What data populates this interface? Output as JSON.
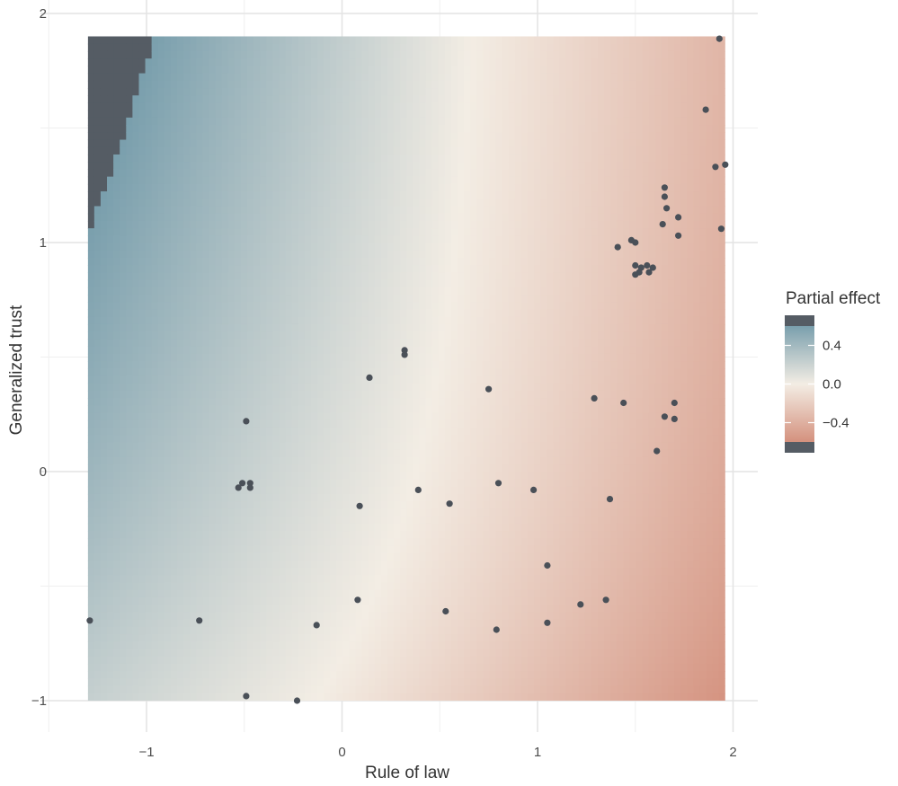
{
  "chart_data": {
    "type": "heatmap",
    "title": "",
    "xlabel": "Rule of law",
    "ylabel": "Generalized trust",
    "xlim": [
      -1.3,
      1.96
    ],
    "ylim": [
      -1.0,
      1.9
    ],
    "x_ticks": [
      -1,
      0,
      1,
      2
    ],
    "y_ticks": [
      -1,
      0,
      1,
      2
    ],
    "x_tick_labels": [
      "−1",
      "0",
      "1",
      "2"
    ],
    "y_tick_labels": [
      "−1",
      "0",
      "1",
      "2"
    ],
    "grid": true,
    "legend": {
      "title": "Partial effect",
      "position": "right",
      "ticks": [
        0.4,
        0.0,
        -0.4
      ],
      "tick_labels": [
        "0.4",
        "0.0",
        "−0.4"
      ],
      "range": [
        -0.6,
        0.6
      ]
    },
    "colors": {
      "high": "#7a9fad",
      "mid": "#f3ede4",
      "low": "#d4917e",
      "out_of_range": "#555c64",
      "points": "#4a5058"
    },
    "surface_description": "Partial effect is positive (blue) at low rule of law and high trust, near zero along a curved band, and negative (red) at high rule of law.",
    "points": [
      {
        "x": -1.29,
        "y": -0.65
      },
      {
        "x": -0.73,
        "y": -0.65
      },
      {
        "x": -0.49,
        "y": -0.98
      },
      {
        "x": -0.23,
        "y": -1.0
      },
      {
        "x": -0.49,
        "y": 0.22
      },
      {
        "x": -0.53,
        "y": -0.07
      },
      {
        "x": -0.51,
        "y": -0.05
      },
      {
        "x": -0.47,
        "y": -0.05
      },
      {
        "x": -0.47,
        "y": -0.07
      },
      {
        "x": -0.13,
        "y": -0.67
      },
      {
        "x": 0.08,
        "y": -0.56
      },
      {
        "x": 0.09,
        "y": -0.15
      },
      {
        "x": 0.14,
        "y": 0.41
      },
      {
        "x": 0.32,
        "y": 0.53
      },
      {
        "x": 0.32,
        "y": 0.51
      },
      {
        "x": 0.39,
        "y": -0.08
      },
      {
        "x": 0.53,
        "y": -0.61
      },
      {
        "x": 0.55,
        "y": -0.14
      },
      {
        "x": 0.75,
        "y": 0.36
      },
      {
        "x": 0.79,
        "y": -0.69
      },
      {
        "x": 0.8,
        "y": -0.05
      },
      {
        "x": 0.98,
        "y": -0.08
      },
      {
        "x": 1.05,
        "y": -0.41
      },
      {
        "x": 1.05,
        "y": -0.66
      },
      {
        "x": 1.22,
        "y": -0.58
      },
      {
        "x": 1.29,
        "y": 0.32
      },
      {
        "x": 1.35,
        "y": -0.56
      },
      {
        "x": 1.37,
        "y": -0.12
      },
      {
        "x": 1.41,
        "y": 0.98
      },
      {
        "x": 1.44,
        "y": 0.3
      },
      {
        "x": 1.48,
        "y": 1.01
      },
      {
        "x": 1.5,
        "y": 1.0
      },
      {
        "x": 1.5,
        "y": 0.9
      },
      {
        "x": 1.52,
        "y": 0.87
      },
      {
        "x": 1.5,
        "y": 0.86
      },
      {
        "x": 1.53,
        "y": 0.89
      },
      {
        "x": 1.56,
        "y": 0.9
      },
      {
        "x": 1.57,
        "y": 0.87
      },
      {
        "x": 1.59,
        "y": 0.89
      },
      {
        "x": 1.61,
        "y": 0.09
      },
      {
        "x": 1.64,
        "y": 1.08
      },
      {
        "x": 1.65,
        "y": 1.24
      },
      {
        "x": 1.65,
        "y": 1.2
      },
      {
        "x": 1.66,
        "y": 1.15
      },
      {
        "x": 1.65,
        "y": 0.24
      },
      {
        "x": 1.7,
        "y": 0.3
      },
      {
        "x": 1.7,
        "y": 0.23
      },
      {
        "x": 1.72,
        "y": 1.11
      },
      {
        "x": 1.72,
        "y": 1.03
      },
      {
        "x": 1.86,
        "y": 1.58
      },
      {
        "x": 1.91,
        "y": 1.33
      },
      {
        "x": 1.93,
        "y": 1.89
      },
      {
        "x": 1.94,
        "y": 1.06
      },
      {
        "x": 1.96,
        "y": 1.34
      }
    ]
  }
}
